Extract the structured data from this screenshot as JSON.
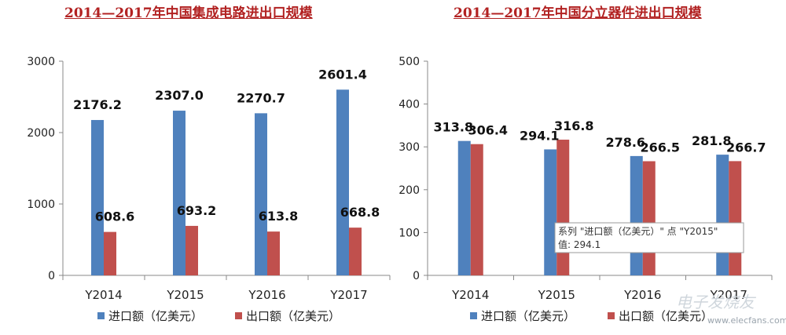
{
  "chart_data": [
    {
      "type": "bar",
      "title": "2014—2017年中国集成电路进出口规模",
      "categories": [
        "Y2014",
        "Y2015",
        "Y2016",
        "Y2017"
      ],
      "series": [
        {
          "name": "进口额（亿美元）",
          "values": [
            2176.2,
            2307.0,
            2270.7,
            2601.4
          ],
          "labels": [
            "2176.2",
            "2307.0",
            "2270.7",
            "2601.4"
          ],
          "color": "#4f81bd"
        },
        {
          "name": "出口额（亿美元）",
          "values": [
            608.6,
            693.2,
            613.8,
            668.8
          ],
          "labels": [
            "608.6",
            "693.2",
            "613.8",
            "668.8"
          ],
          "color": "#c0504d"
        }
      ],
      "ylim": [
        0,
        3000
      ],
      "yticks": [
        "0",
        "1000",
        "2000",
        "3000"
      ],
      "grid": false,
      "legend": "bottom"
    },
    {
      "type": "bar",
      "title": "2014—2017年中国分立器件进出口规模",
      "categories": [
        "Y2014",
        "Y2015",
        "Y2016",
        "Y2017"
      ],
      "series": [
        {
          "name": "进口额（亿美元）",
          "values": [
            313.8,
            294.1,
            278.6,
            281.8
          ],
          "labels": [
            "313.8",
            "294.1",
            "278.6",
            "281.8"
          ],
          "color": "#4f81bd"
        },
        {
          "name": "出口额（亿美元）",
          "values": [
            306.4,
            316.8,
            266.5,
            266.7
          ],
          "labels": [
            "306.4",
            "316.8",
            "266.5",
            "266.7"
          ],
          "color": "#c0504d"
        }
      ],
      "ylim": [
        0,
        500
      ],
      "yticks": [
        "0",
        "100",
        "200",
        "300",
        "400",
        "500"
      ],
      "grid": false,
      "legend": "bottom",
      "tooltip": {
        "line1": "系列 \"进口额（亿美元）\" 点 \"Y2015\"",
        "line2": "值: 294.1"
      }
    }
  ],
  "watermark": {
    "main": "电子发烧友",
    "sub": "www.elecfans.com"
  }
}
